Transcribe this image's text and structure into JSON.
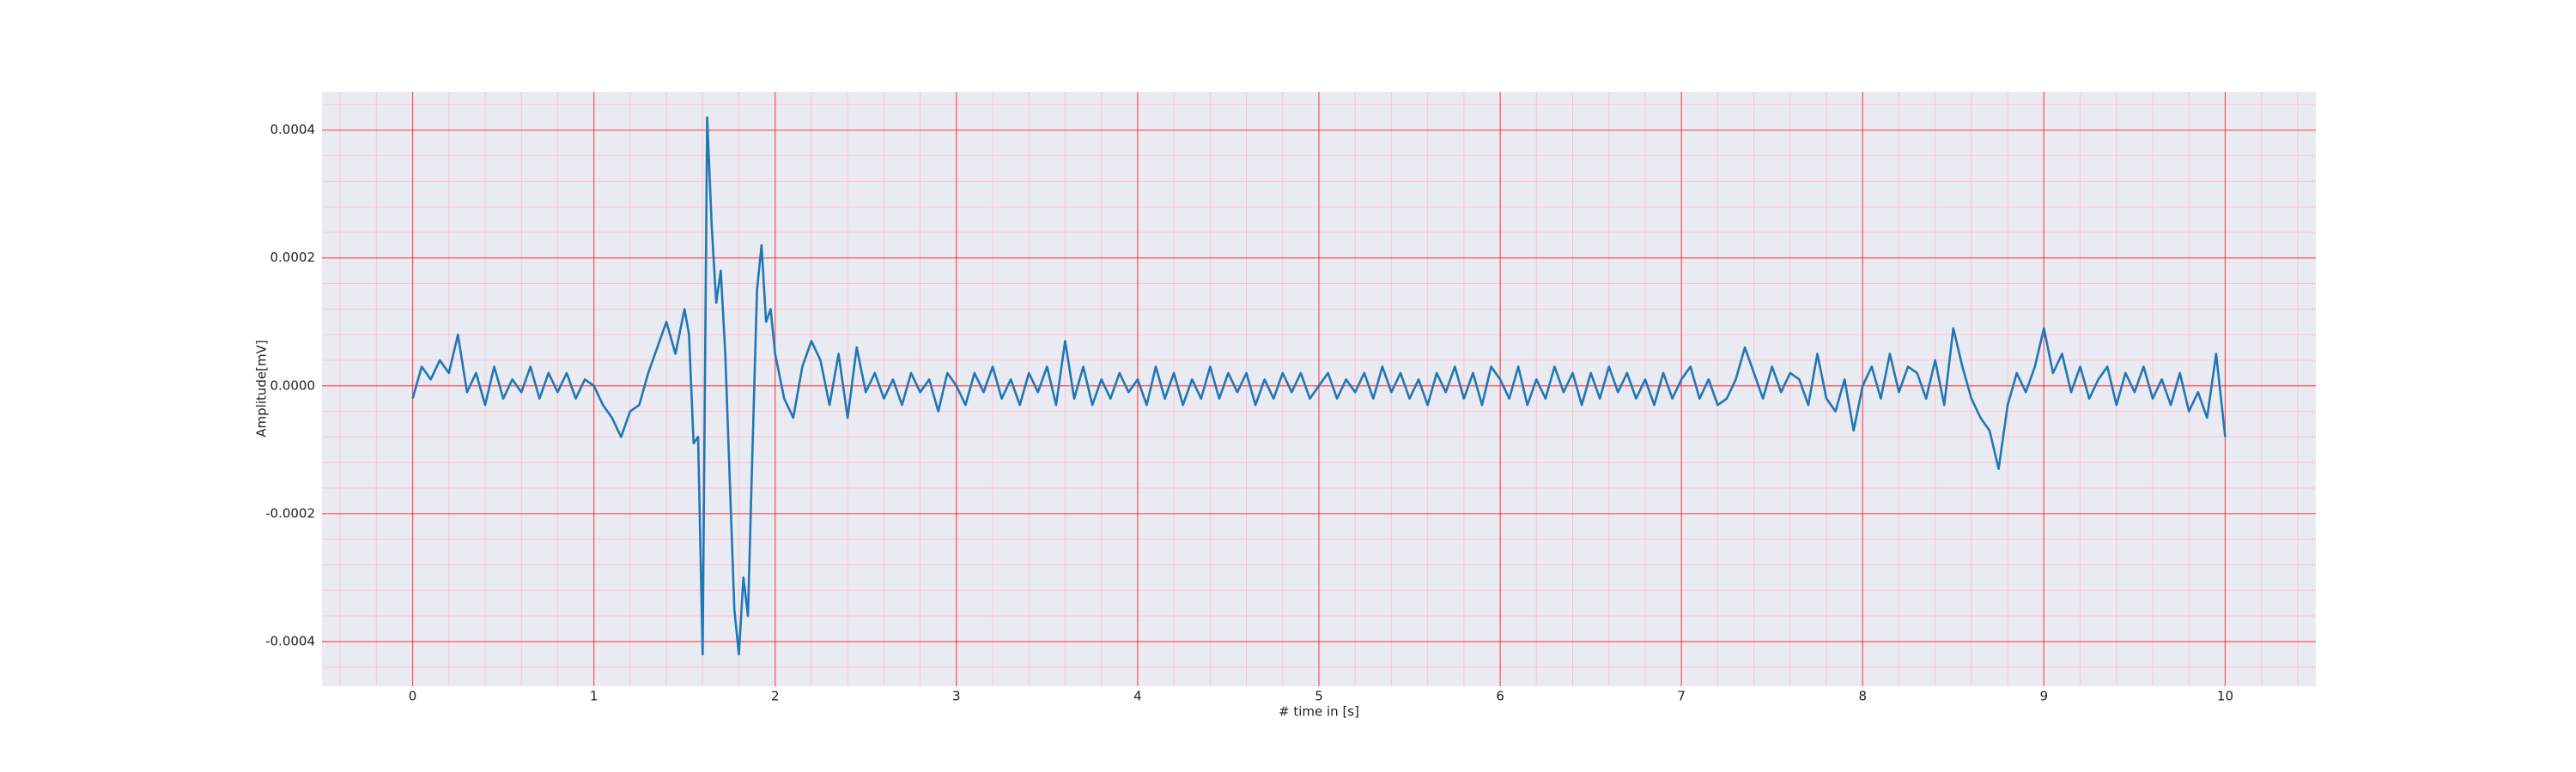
{
  "chart_data": {
    "type": "line",
    "xlabel": "# time in [s]",
    "ylabel": "Amplitude[mV]",
    "color": "#1f77b4",
    "grid": true,
    "grid_color": "#ff0000",
    "minor_grid": true,
    "minor_grid_color": "#ffb6c1",
    "minor_divisions": 5,
    "xlim": [
      -0.5,
      10.5
    ],
    "xticks": [
      0,
      1,
      2,
      3,
      4,
      5,
      6,
      7,
      8,
      9,
      10
    ],
    "ylim": [
      -0.00047,
      0.00046
    ],
    "yticks": [
      -0.0004,
      -0.0002,
      {
        "value": 0,
        "label": "0.0000"
      },
      0.0002,
      0.0004
    ],
    "x": [
      0,
      0.05,
      0.1,
      0.15,
      0.2,
      0.25,
      0.3,
      0.35,
      0.4,
      0.45,
      0.5,
      0.55,
      0.6,
      0.65,
      0.7,
      0.75,
      0.8,
      0.85,
      0.9,
      0.95,
      1,
      1.05,
      1.1,
      1.15,
      1.2,
      1.25,
      1.3,
      1.35,
      1.4,
      1.45,
      1.5,
      1.525,
      1.55,
      1.575,
      1.6,
      1.625,
      1.65,
      1.675,
      1.7,
      1.725,
      1.75,
      1.775,
      1.8,
      1.825,
      1.85,
      1.875,
      1.9,
      1.925,
      1.95,
      1.975,
      2,
      2.05,
      2.1,
      2.15,
      2.2,
      2.25,
      2.3,
      2.35,
      2.4,
      2.45,
      2.5,
      2.55,
      2.6,
      2.65,
      2.7,
      2.75,
      2.8,
      2.85,
      2.9,
      2.95,
      3,
      3.05,
      3.1,
      3.15,
      3.2,
      3.25,
      3.3,
      3.35,
      3.4,
      3.45,
      3.5,
      3.55,
      3.6,
      3.65,
      3.7,
      3.75,
      3.8,
      3.85,
      3.9,
      3.95,
      4,
      4.05,
      4.1,
      4.15,
      4.2,
      4.25,
      4.3,
      4.35,
      4.4,
      4.45,
      4.5,
      4.55,
      4.6,
      4.65,
      4.7,
      4.75,
      4.8,
      4.85,
      4.9,
      4.95,
      5,
      5.05,
      5.1,
      5.15,
      5.2,
      5.25,
      5.3,
      5.35,
      5.4,
      5.45,
      5.5,
      5.55,
      5.6,
      5.65,
      5.7,
      5.75,
      5.8,
      5.85,
      5.9,
      5.95,
      6,
      6.05,
      6.1,
      6.15,
      6.2,
      6.25,
      6.3,
      6.35,
      6.4,
      6.45,
      6.5,
      6.55,
      6.6,
      6.65,
      6.7,
      6.75,
      6.8,
      6.85,
      6.9,
      6.95,
      7,
      7.05,
      7.1,
      7.15,
      7.2,
      7.25,
      7.3,
      7.35,
      7.4,
      7.45,
      7.5,
      7.55,
      7.6,
      7.65,
      7.7,
      7.75,
      7.8,
      7.85,
      7.9,
      7.95,
      8,
      8.05,
      8.1,
      8.15,
      8.2,
      8.25,
      8.3,
      8.35,
      8.4,
      8.45,
      8.5,
      8.55,
      8.6,
      8.65,
      8.7,
      8.75,
      8.8,
      8.85,
      8.9,
      8.95,
      9,
      9.05,
      9.1,
      9.15,
      9.2,
      9.25,
      9.3,
      9.35,
      9.4,
      9.45,
      9.5,
      9.55,
      9.6,
      9.65,
      9.7,
      9.75,
      9.8,
      9.85,
      9.9,
      9.95,
      10
    ],
    "values": [
      -2e-05,
      3e-05,
      1e-05,
      4e-05,
      2e-05,
      8e-05,
      -1e-05,
      2e-05,
      -3e-05,
      3e-05,
      -2e-05,
      1e-05,
      -1e-05,
      3e-05,
      -2e-05,
      2e-05,
      -1e-05,
      2e-05,
      -2e-05,
      1e-05,
      0,
      -3e-05,
      -5e-05,
      -8e-05,
      -4e-05,
      -3e-05,
      2e-05,
      6e-05,
      0.0001,
      5e-05,
      0.00012,
      8e-05,
      -9e-05,
      -8e-05,
      -0.00042,
      0.00042,
      0.00025,
      0.00013,
      0.00018,
      5e-05,
      -0.00015,
      -0.00035,
      -0.00042,
      -0.0003,
      -0.00036,
      -0.0001,
      0.00015,
      0.00022,
      0.0001,
      0.00012,
      5e-05,
      -2e-05,
      -5e-05,
      3e-05,
      7e-05,
      4e-05,
      -3e-05,
      5e-05,
      -5e-05,
      6e-05,
      -1e-05,
      2e-05,
      -2e-05,
      1e-05,
      -3e-05,
      2e-05,
      -1e-05,
      1e-05,
      -4e-05,
      2e-05,
      0,
      -3e-05,
      2e-05,
      -1e-05,
      3e-05,
      -2e-05,
      1e-05,
      -3e-05,
      2e-05,
      -1e-05,
      3e-05,
      -3e-05,
      7e-05,
      -2e-05,
      3e-05,
      -3e-05,
      1e-05,
      -2e-05,
      2e-05,
      -1e-05,
      1e-05,
      -3e-05,
      3e-05,
      -2e-05,
      2e-05,
      -3e-05,
      1e-05,
      -2e-05,
      3e-05,
      -2e-05,
      2e-05,
      -1e-05,
      2e-05,
      -3e-05,
      1e-05,
      -2e-05,
      2e-05,
      -1e-05,
      2e-05,
      -2e-05,
      0,
      2e-05,
      -2e-05,
      1e-05,
      -1e-05,
      2e-05,
      -2e-05,
      3e-05,
      -1e-05,
      2e-05,
      -2e-05,
      1e-05,
      -3e-05,
      2e-05,
      -1e-05,
      3e-05,
      -2e-05,
      2e-05,
      -3e-05,
      3e-05,
      1e-05,
      -2e-05,
      3e-05,
      -3e-05,
      1e-05,
      -2e-05,
      3e-05,
      -1e-05,
      2e-05,
      -3e-05,
      2e-05,
      -2e-05,
      3e-05,
      -1e-05,
      2e-05,
      -2e-05,
      1e-05,
      -3e-05,
      2e-05,
      -2e-05,
      1e-05,
      3e-05,
      -2e-05,
      1e-05,
      -3e-05,
      -2e-05,
      1e-05,
      6e-05,
      2e-05,
      -2e-05,
      3e-05,
      -1e-05,
      2e-05,
      1e-05,
      -3e-05,
      5e-05,
      -2e-05,
      -4e-05,
      1e-05,
      -7e-05,
      0,
      3e-05,
      -2e-05,
      5e-05,
      -1e-05,
      3e-05,
      2e-05,
      -2e-05,
      4e-05,
      -3e-05,
      9e-05,
      3e-05,
      -2e-05,
      -5e-05,
      -7e-05,
      -0.00013,
      -3e-05,
      2e-05,
      -1e-05,
      3e-05,
      9e-05,
      2e-05,
      5e-05,
      -1e-05,
      3e-05,
      -2e-05,
      1e-05,
      3e-05,
      -3e-05,
      2e-05,
      -1e-05,
      3e-05,
      -2e-05,
      1e-05,
      -3e-05,
      2e-05,
      -4e-05,
      -1e-05,
      -5e-05,
      5e-05,
      -8e-05
    ]
  }
}
